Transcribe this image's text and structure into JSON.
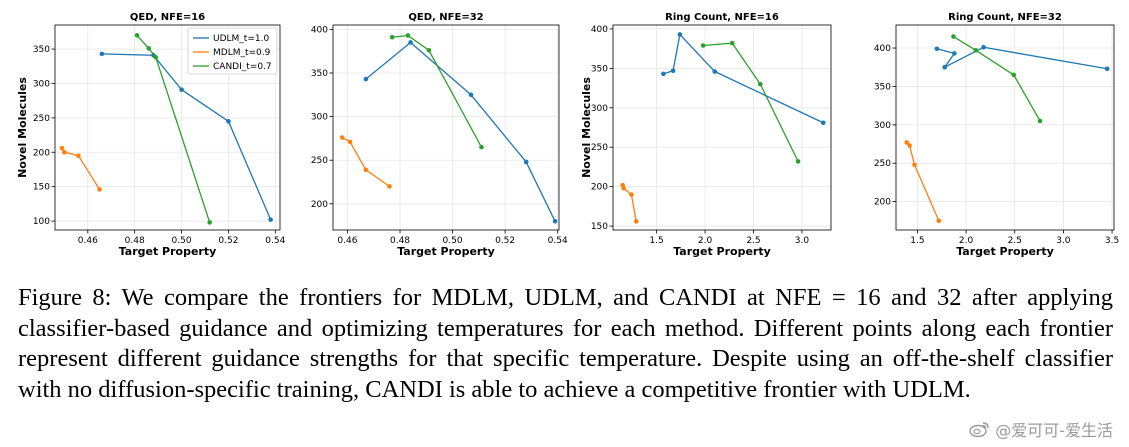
{
  "chart_data": [
    {
      "type": "line",
      "title": "QED, NFE=16",
      "xlabel": "Target Property",
      "ylabel": "Novel Molecules",
      "xlim": [
        0.446,
        0.542
      ],
      "ylim": [
        87,
        385
      ],
      "xticks": [
        0.46,
        0.48,
        0.5,
        0.52,
        0.54
      ],
      "xtick_labels": [
        "0.46",
        "0.48",
        "0.50",
        "0.52",
        "0.54"
      ],
      "yticks": [
        100,
        150,
        200,
        250,
        300,
        350
      ],
      "ytick_labels": [
        "100",
        "150",
        "200",
        "250",
        "300",
        "350"
      ],
      "legend": true,
      "legend_position": "top-right",
      "show_ylabel": true,
      "series": [
        {
          "name": "UDLM_t=1.0",
          "color": "#1f77b4",
          "x": [
            0.466,
            0.488,
            0.5,
            0.52,
            0.538
          ],
          "y": [
            343,
            341,
            291,
            245,
            102
          ]
        },
        {
          "name": "MDLM_t=0.9",
          "color": "#ff7f0e",
          "x": [
            0.449,
            0.45,
            0.456,
            0.465
          ],
          "y": [
            206,
            200,
            195,
            146
          ]
        },
        {
          "name": "CANDI_t=0.7",
          "color": "#2ca02c",
          "x": [
            0.481,
            0.486,
            0.489,
            0.512
          ],
          "y": [
            370,
            351,
            338,
            98
          ]
        }
      ]
    },
    {
      "type": "line",
      "title": "QED, NFE=32",
      "xlabel": "Target Property",
      "ylabel": "Novel Molecules",
      "xlim": [
        0.4545,
        0.5405
      ],
      "ylim": [
        170,
        405
      ],
      "xticks": [
        0.46,
        0.48,
        0.5,
        0.52,
        0.54
      ],
      "xtick_labels": [
        "0.46",
        "0.48",
        "0.50",
        "0.52",
        "0.54"
      ],
      "yticks": [
        200,
        250,
        300,
        350,
        400
      ],
      "ytick_labels": [
        "200",
        "250",
        "300",
        "350",
        "400"
      ],
      "legend": false,
      "show_ylabel": false,
      "series": [
        {
          "name": "UDLM_t=1.0",
          "color": "#1f77b4",
          "x": [
            0.467,
            0.484,
            0.507,
            0.528,
            0.539
          ],
          "y": [
            343,
            385,
            325,
            248,
            180
          ]
        },
        {
          "name": "MDLM_t=0.9",
          "color": "#ff7f0e",
          "x": [
            0.458,
            0.461,
            0.467,
            0.476
          ],
          "y": [
            276,
            271,
            239,
            220
          ]
        },
        {
          "name": "CANDI_t=0.7",
          "color": "#2ca02c",
          "x": [
            0.477,
            0.483,
            0.491,
            0.511
          ],
          "y": [
            391,
            393,
            376,
            265
          ]
        }
      ]
    },
    {
      "type": "line",
      "title": "Ring Count, NFE=16",
      "xlabel": "Target Property",
      "ylabel": "Novel Molecules",
      "xlim": [
        1.05,
        3.3
      ],
      "ylim": [
        145,
        405
      ],
      "xticks": [
        1.5,
        2.0,
        2.5,
        3.0
      ],
      "xtick_labels": [
        "1.5",
        "2.0",
        "2.5",
        "3.0"
      ],
      "yticks": [
        150,
        200,
        250,
        300,
        350,
        400
      ],
      "ytick_labels": [
        "150",
        "200",
        "250",
        "300",
        "350",
        "400"
      ],
      "legend": false,
      "show_ylabel": true,
      "series": [
        {
          "name": "UDLM_t=1.0",
          "color": "#1f77b4",
          "x": [
            1.57,
            1.67,
            1.74,
            2.1,
            3.22
          ],
          "y": [
            343,
            347,
            393,
            346,
            281
          ]
        },
        {
          "name": "MDLM_t=0.9",
          "color": "#ff7f0e",
          "x": [
            1.15,
            1.16,
            1.24,
            1.29
          ],
          "y": [
            202,
            198,
            190,
            156
          ]
        },
        {
          "name": "CANDI_t=0.7",
          "color": "#2ca02c",
          "x": [
            1.98,
            2.28,
            2.57,
            2.96
          ],
          "y": [
            379,
            382,
            330,
            232
          ]
        }
      ]
    },
    {
      "type": "line",
      "title": "Ring Count, NFE=32",
      "xlabel": "Target Property",
      "ylabel": "Novel Molecules",
      "xlim": [
        1.28,
        3.52
      ],
      "ylim": [
        163,
        430
      ],
      "xticks": [
        1.5,
        2.0,
        2.5,
        3.0,
        3.5
      ],
      "xtick_labels": [
        "1.5",
        "2.0",
        "2.5",
        "3.0",
        "3.5"
      ],
      "yticks": [
        200,
        250,
        300,
        350,
        400
      ],
      "ytick_labels": [
        "200",
        "250",
        "300",
        "350",
        "400"
      ],
      "legend": false,
      "show_ylabel": false,
      "series": [
        {
          "name": "UDLM_t=1.0",
          "color": "#1f77b4",
          "x": [
            1.7,
            1.88,
            1.78,
            2.18,
            3.45
          ],
          "y": [
            399,
            393,
            375,
            401,
            373
          ]
        },
        {
          "name": "MDLM_t=0.9",
          "color": "#ff7f0e",
          "x": [
            1.39,
            1.42,
            1.47,
            1.72
          ],
          "y": [
            277,
            273,
            248,
            175
          ]
        },
        {
          "name": "CANDI_t=0.7",
          "color": "#2ca02c",
          "x": [
            1.87,
            2.1,
            2.49,
            2.76
          ],
          "y": [
            415,
            397,
            365,
            305
          ]
        }
      ]
    }
  ],
  "caption": "Figure 8: We compare the frontiers for MDLM, UDLM, and CANDI at NFE = 16 and 32 after applying classifier-based guidance and optimizing temperatures for each method. Different points along each frontier represent different guidance strengths for that specific temperature. Despite using an off-the-shelf classifier with no diffusion-specific training, CANDI is able to achieve a competitive frontier with UDLM.",
  "watermark": {
    "icon": "weibo-icon",
    "text": "@爱可可-爱生活"
  }
}
